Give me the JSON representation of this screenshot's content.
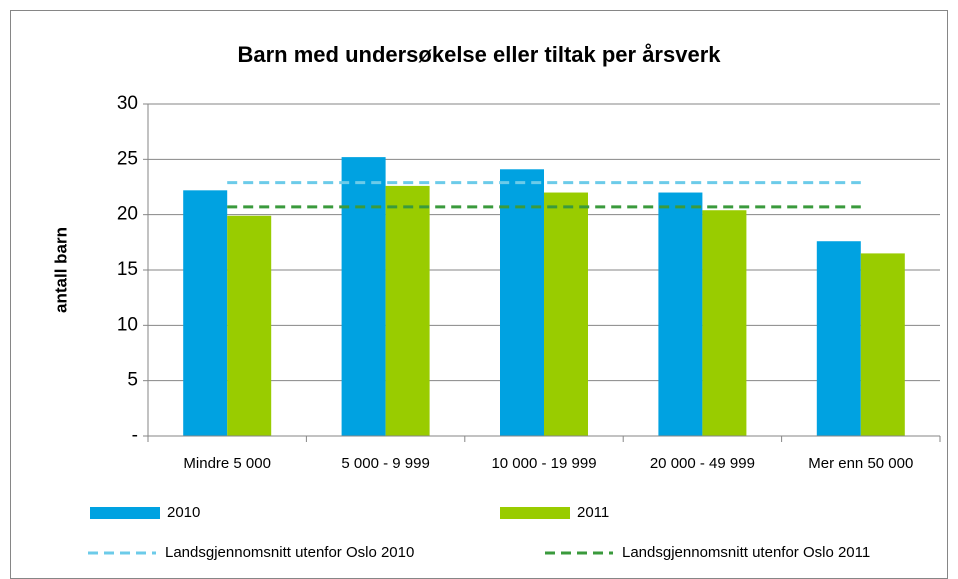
{
  "chart_data": {
    "type": "bar",
    "title": "Barn med undersøkelse eller tiltak per årsverk",
    "y_label": "antall barn",
    "categories": [
      "Mindre 5 000",
      "5 000 - 9 999",
      "10 000 - 19 999",
      "20 000 - 49 999",
      "Mer enn 50 000"
    ],
    "series": [
      {
        "name": "2010",
        "color": "#00a2e1",
        "type": "bar",
        "values": [
          22.2,
          25.2,
          24.1,
          22.0,
          17.6
        ]
      },
      {
        "name": "2011",
        "color": "#99cc00",
        "type": "bar",
        "values": [
          19.9,
          22.6,
          22.0,
          20.4,
          16.5
        ]
      },
      {
        "name": "Landsgjennomsnitt utenfor Oslo 2010",
        "color": "#6ccbe9",
        "type": "line",
        "style": "dashed",
        "values": [
          22.9,
          22.9,
          22.9,
          22.9,
          22.9
        ]
      },
      {
        "name": "Landsgjennomsnitt utenfor Oslo 2011",
        "color": "#3a9a3c",
        "type": "line",
        "style": "dashed",
        "values": [
          20.7,
          20.7,
          20.7,
          20.7,
          20.7
        ]
      }
    ],
    "ylim": [
      0,
      30
    ],
    "yticks": [
      {
        "value": 0,
        "label": "-"
      },
      5,
      10,
      15,
      20,
      25,
      30
    ],
    "grid": true,
    "legend": "bottom"
  }
}
